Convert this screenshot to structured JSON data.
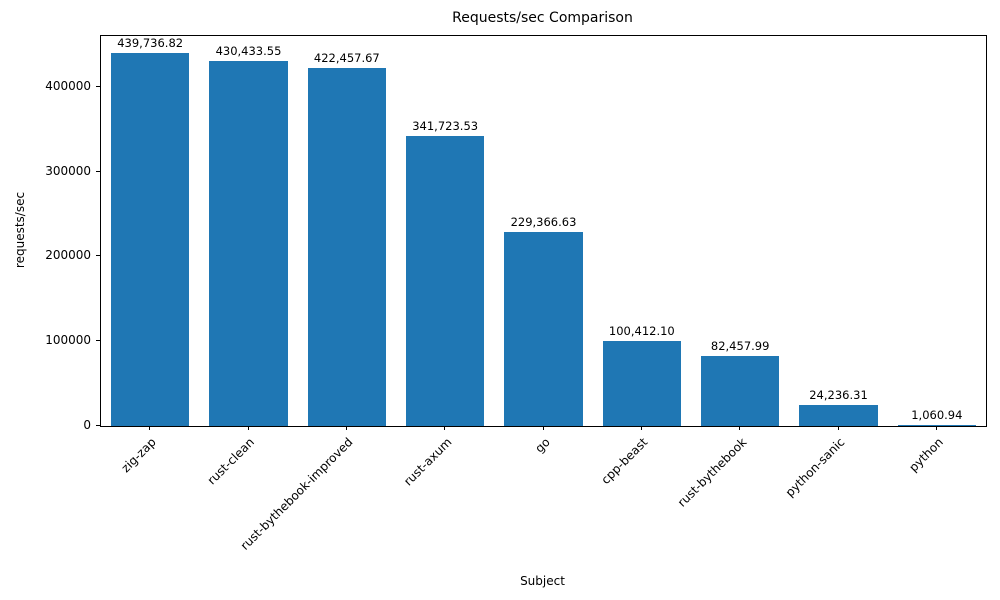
{
  "chart_data": {
    "type": "bar",
    "title": "Requests/sec Comparison",
    "xlabel": "Subject",
    "ylabel": "requests/sec",
    "categories": [
      "zig-zap",
      "rust-clean",
      "rust-bythebook-improved",
      "rust-axum",
      "go",
      "cpp-beast",
      "rust-bythebook",
      "python-sanic",
      "python"
    ],
    "values": [
      439736.82,
      430433.55,
      422457.67,
      341723.53,
      229366.63,
      100412.1,
      82457.99,
      24236.31,
      1060.94
    ],
    "value_labels": [
      "439,736.82",
      "430,433.55",
      "422,457.67",
      "341,723.53",
      "229,366.63",
      "100,412.10",
      "82,457.99",
      "24,236.31",
      "1,060.94"
    ],
    "yticks": [
      0,
      100000,
      200000,
      300000,
      400000
    ],
    "ylim": [
      0,
      460000
    ],
    "bar_color": "#1f77b4",
    "grid": false,
    "legend_position": "none"
  }
}
